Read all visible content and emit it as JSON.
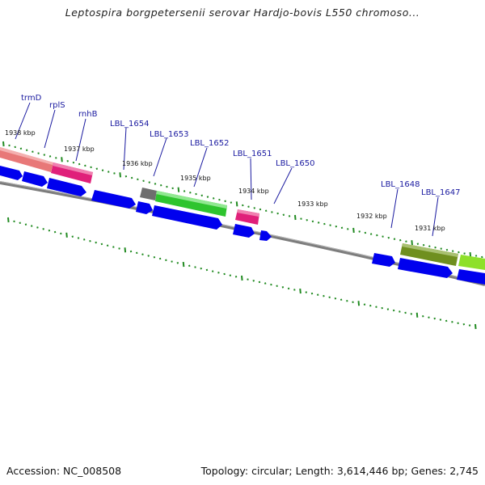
{
  "header": {
    "title": "Leptospira borgpetersenii serovar Hardjo-bovis L550 chromoso..."
  },
  "footer": {
    "accession": "Accession: NC_008508",
    "summary": "Topology: circular; Length: 3,614,446 bp; Genes: 2,745"
  },
  "gene_labels": [
    "trmD",
    "rplS",
    "rnhB",
    "LBL_1654",
    "LBL_1653",
    "LBL_1652",
    "LBL_1651",
    "LBL_1650",
    "LBL_1648",
    "LBL_1647"
  ],
  "kbp_labels": [
    "1938 kbp",
    "1937 kbp",
    "1936 kbp",
    "1935 kbp",
    "1934 kbp",
    "1933 kbp",
    "1932 kbp",
    "1931 kbp"
  ],
  "colors": {
    "backbone": "#808080",
    "forward_cds": "#0000ee",
    "tick": "#228b22",
    "label": "#1a1aa0",
    "feature_salmon": "#e87878",
    "feature_magenta": "#e0207a",
    "feature_gray": "#6e6e6e",
    "feature_green": "#2ec42e",
    "feature_olive": "#6f8f1f",
    "feature_lime": "#8ee02a"
  }
}
